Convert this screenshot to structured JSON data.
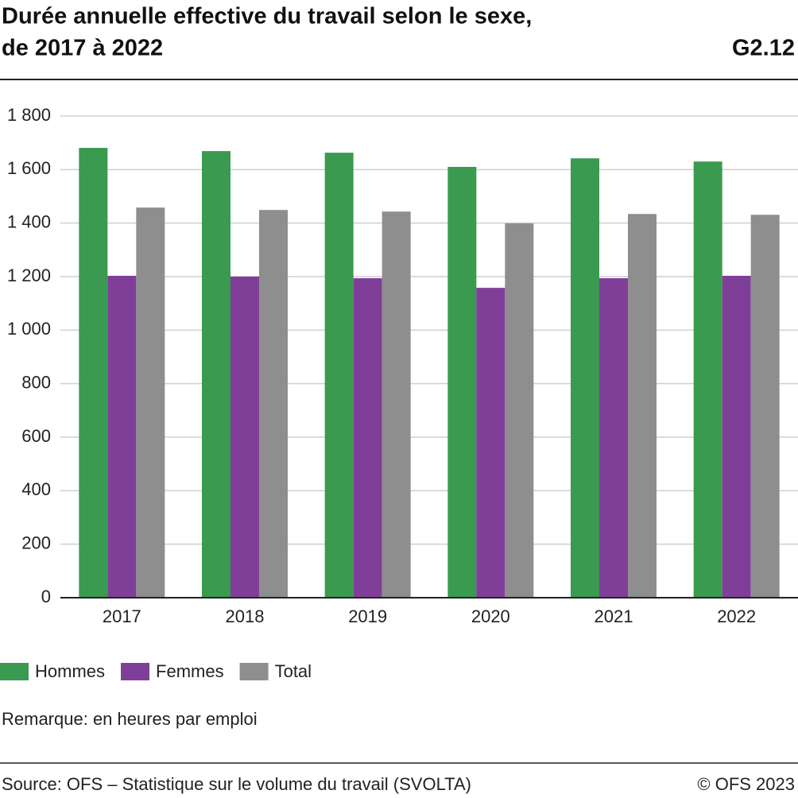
{
  "chart_data": {
    "type": "bar",
    "title": [
      "Durée annuelle effective du travail selon le sexe,",
      "de 2017 à 2022"
    ],
    "chart_id": "G2.12",
    "categories": [
      "2017",
      "2018",
      "2019",
      "2020",
      "2021",
      "2022"
    ],
    "series": [
      {
        "name": "Hommes",
        "color": "#3a9a4f",
        "values": [
          1681,
          1669,
          1663,
          1610,
          1642,
          1630
        ]
      },
      {
        "name": "Femmes",
        "color": "#7f3f98",
        "values": [
          1203,
          1200,
          1194,
          1158,
          1194,
          1203
        ]
      },
      {
        "name": "Total",
        "color": "#8e8e8e",
        "values": [
          1458,
          1449,
          1443,
          1399,
          1434,
          1431
        ]
      }
    ],
    "ylim": [
      0,
      1800
    ],
    "yticks": [
      0,
      200,
      400,
      600,
      800,
      {
        "value": 1000,
        "label": "1 000"
      },
      {
        "value": 1200,
        "label": "1 200"
      },
      {
        "value": 1400,
        "label": "1 400"
      },
      {
        "value": 1600,
        "label": "1 600"
      },
      {
        "value": 1800,
        "label": "1 800"
      }
    ],
    "grid": true,
    "note": "Remarque: en heures par emploi",
    "source": "Source: OFS – Statistique sur le volume du travail (SVOLTA)",
    "copyright": "© OFS 2023"
  }
}
